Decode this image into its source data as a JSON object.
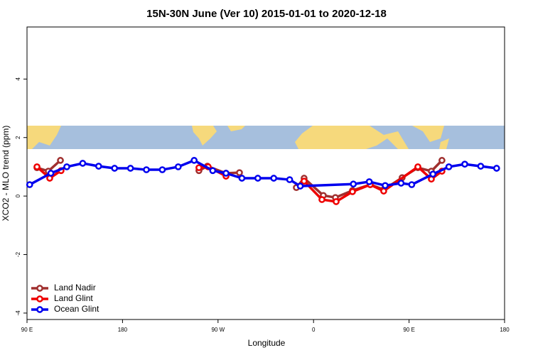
{
  "chart_data": {
    "type": "line",
    "title": "15N-30N June (Ver 10)   2015-01-01 to 2020-12-18",
    "x_label": "Longitude",
    "y_label": "XCO2 - MLO trend (ppm)",
    "xlim": [
      90,
      540
    ],
    "xticks": [
      {
        "value": 90,
        "label": "90 E"
      },
      180,
      {
        "value": 270,
        "label": "90 W"
      },
      {
        "value": 360,
        "label": "0"
      },
      {
        "value": 450,
        "label": "90 E"
      },
      {
        "value": 540,
        "label": "180"
      }
    ],
    "ylim": [
      -4.22,
      5.78
    ],
    "yticks": [
      -4,
      -2,
      0,
      2,
      4
    ],
    "legend": "bottom-left",
    "series": [
      {
        "name": "Land Nadir",
        "color": "#a0302f",
        "x": [
          99.4,
          110.1,
          121.5,
          null,
          252,
          260,
          277.5,
          290.2,
          null,
          343.8,
          351.1,
          369.2,
          380.6,
          396.7,
          413.4,
          426.1,
          443.5,
          458.3,
          471,
          481
        ],
        "values": [
          0.97,
          0.85,
          1.22,
          null,
          0.87,
          1.02,
          0.78,
          0.8,
          null,
          0.29,
          0.61,
          0.02,
          -0.05,
          0.19,
          0.39,
          0.22,
          0.63,
          0.97,
          0.85,
          1.22
        ]
      },
      {
        "name": "Land Glint",
        "color": "#ee0000",
        "x": [
          99.4,
          111.4,
          122.1,
          null,
          252,
          260.7,
          277.5,
          null,
          351.1,
          367.9,
          381.3,
          396.7,
          413.4,
          426.1,
          458.3,
          471,
          481
        ],
        "values": [
          1.0,
          0.61,
          0.87,
          null,
          0.97,
          1.0,
          0.68,
          null,
          0.51,
          -0.12,
          -0.19,
          0.15,
          0.39,
          0.17,
          1.0,
          0.58,
          0.85
        ]
      },
      {
        "name": "Ocean Glint",
        "color": "#0000ee",
        "x": [
          92.5,
          112.5,
          127.5,
          142.5,
          157.5,
          172.5,
          187.5,
          202.5,
          217.5,
          232.5,
          247.5,
          265,
          277.5,
          292.5,
          307.5,
          322.5,
          337.5,
          347.5,
          397.5,
          412.5,
          427.5,
          442.5,
          452.5,
          472.5,
          487.5,
          502.5,
          517.5,
          532.5
        ],
        "values": [
          0.39,
          0.78,
          1.0,
          1.12,
          1.02,
          0.95,
          0.95,
          0.9,
          0.9,
          1.0,
          1.22,
          0.87,
          0.78,
          0.61,
          0.61,
          0.61,
          0.56,
          0.34,
          0.41,
          0.49,
          0.36,
          0.44,
          0.39,
          0.75,
          1.0,
          1.09,
          1.02,
          0.95
        ]
      }
    ]
  }
}
